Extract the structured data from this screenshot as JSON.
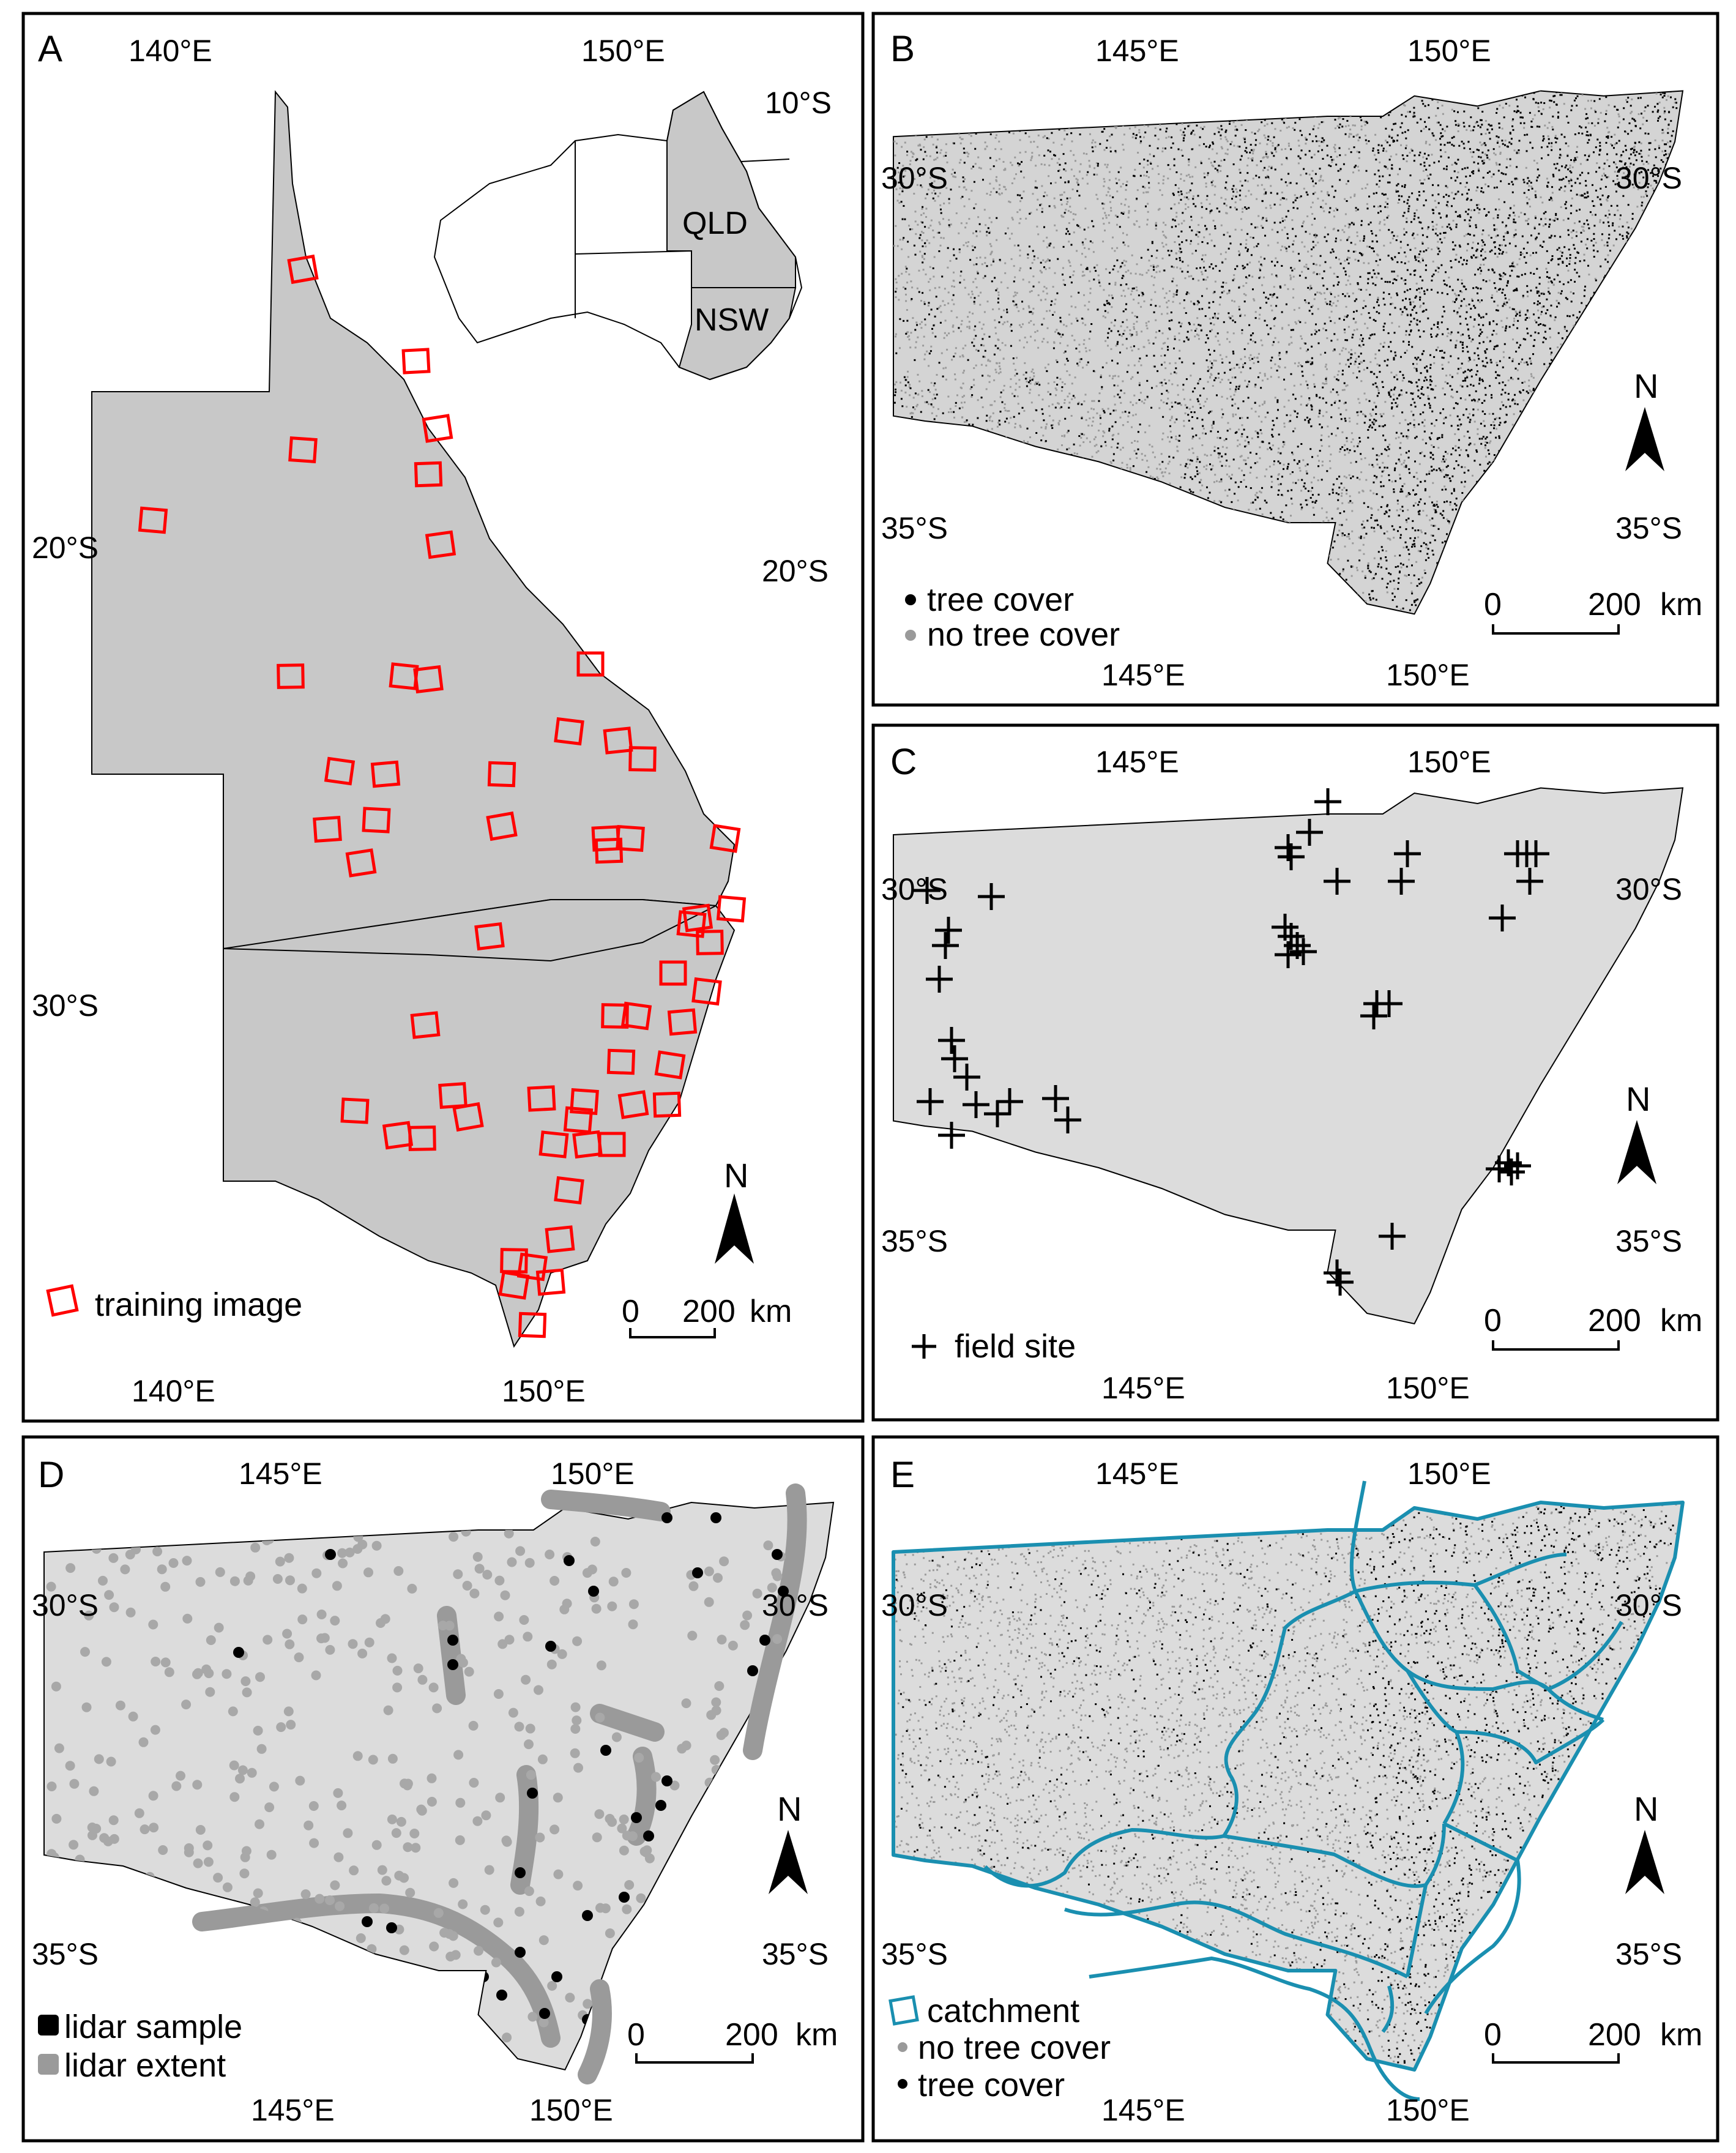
{
  "panels": {
    "A": {
      "letter": "A",
      "top_labels": [
        "140°E",
        "150°E"
      ],
      "bottom_labels": [
        "140°E",
        "150°E"
      ],
      "left_labels": [
        "20°S",
        "30°S"
      ],
      "inset_right_labels": [
        "10°S",
        "20°S"
      ],
      "inset_states": [
        "QLD",
        "NSW"
      ],
      "legend": "training image",
      "scalebar": {
        "zero": "0",
        "max": "200",
        "unit": "km"
      },
      "north": "N",
      "colors": {
        "land": "#c8c8c8",
        "marker": "#ff0000"
      }
    },
    "B": {
      "letter": "B",
      "top_labels": [
        "145°E",
        "150°E"
      ],
      "bottom_labels": [
        "145°E",
        "150°E"
      ],
      "left_labels": [
        "30°S",
        "35°S"
      ],
      "right_labels": [
        "30°S",
        "35°S"
      ],
      "legend": [
        "tree cover",
        "no tree cover"
      ],
      "scalebar": {
        "zero": "0",
        "max": "200",
        "unit": "km"
      },
      "north": "N",
      "colors": {
        "tree": "#000000",
        "no_tree": "#a0a0a0",
        "land": "#dcdcdc"
      }
    },
    "C": {
      "letter": "C",
      "top_labels": [
        "145°E",
        "150°E"
      ],
      "bottom_labels": [
        "145°E",
        "150°E"
      ],
      "left_labels": [
        "30°S",
        "35°S"
      ],
      "right_labels": [
        "30°S",
        "35°S"
      ],
      "legend": "field site",
      "scalebar": {
        "zero": "0",
        "max": "200",
        "unit": "km"
      },
      "north": "N"
    },
    "D": {
      "letter": "D",
      "top_labels": [
        "145°E",
        "150°E"
      ],
      "bottom_labels": [
        "145°E",
        "150°E"
      ],
      "left_labels": [
        "30°S",
        "35°S"
      ],
      "right_labels": [
        "30°S",
        "35°S"
      ],
      "legend": [
        "lidar sample",
        "lidar extent"
      ],
      "scalebar": {
        "zero": "0",
        "max": "200",
        "unit": "km"
      },
      "north": "N",
      "colors": {
        "sample": "#000000",
        "extent": "#9a9a9a",
        "land": "#dcdcdc"
      }
    },
    "E": {
      "letter": "E",
      "top_labels": [
        "145°E",
        "150°E"
      ],
      "bottom_labels": [
        "145°E",
        "150°E"
      ],
      "left_labels": [
        "30°S",
        "35°S"
      ],
      "right_labels": [
        "30°S",
        "35°S"
      ],
      "legend": [
        "catchment",
        "no tree cover",
        "tree cover"
      ],
      "scalebar": {
        "zero": "0",
        "max": "200",
        "unit": "km"
      },
      "north": "N",
      "colors": {
        "catchment": "#1a8fb0",
        "tree": "#000000",
        "no_tree": "#a0a0a0"
      }
    }
  }
}
